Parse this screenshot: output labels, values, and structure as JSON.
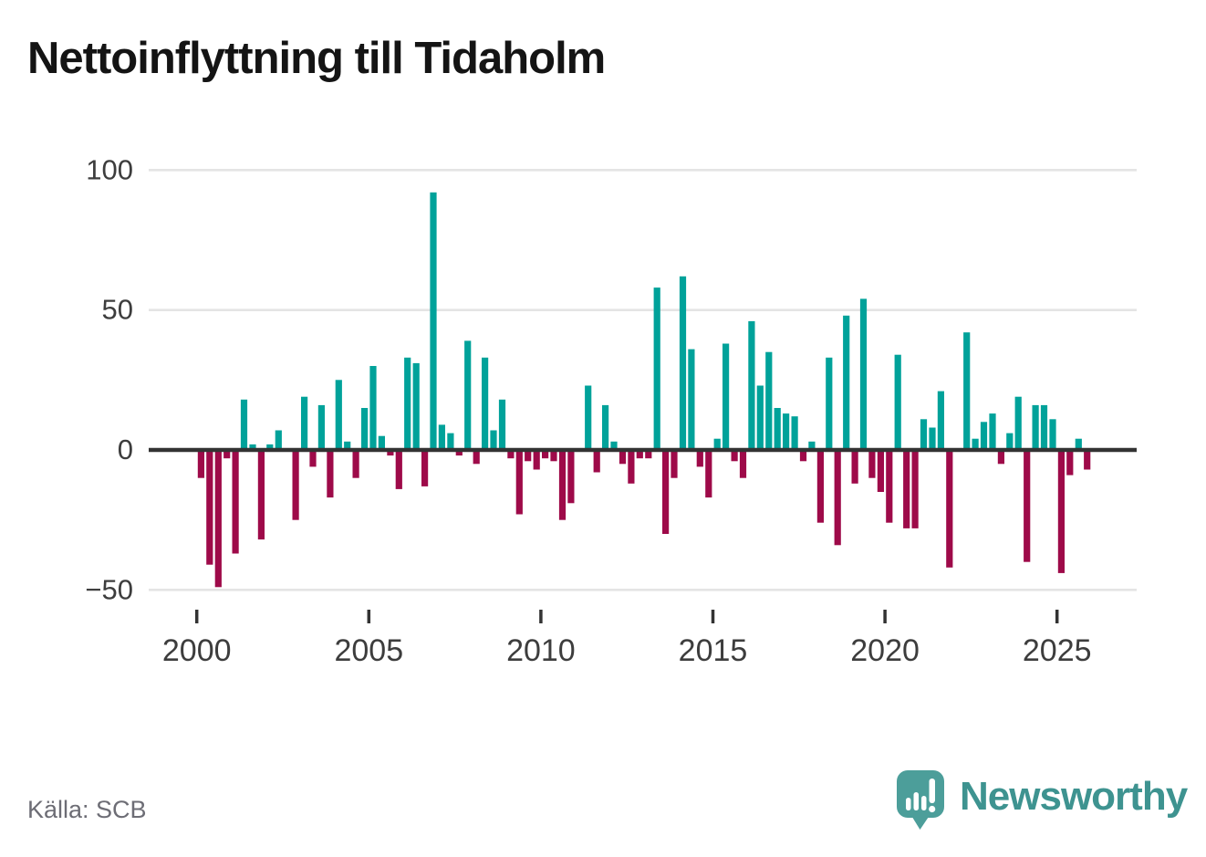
{
  "title": "Nettoinflyttning till Tidaholm",
  "source": "Källa: SCB",
  "logo": {
    "text": "Newsworthy"
  },
  "colors": {
    "positive": "#00a29a",
    "negative": "#9e0a49",
    "baseline": "#333333",
    "gridline": "#e4e4e4",
    "axis_text": "#3d3d3d",
    "source_text": "#6d6d75",
    "logo_bubble": "#4c9e9a",
    "logo_text": "#3e9390",
    "title_text": "#141414"
  },
  "y_axis": {
    "tick_labels": [
      "100",
      "50",
      "0",
      "−50"
    ],
    "tick_values": [
      100,
      50,
      0,
      -50
    ]
  },
  "x_axis": {
    "ticks": [
      "2000",
      "2005",
      "2010",
      "2015",
      "2020",
      "2025"
    ]
  },
  "chart_data": {
    "type": "bar",
    "title": "Nettoinflyttning till Tidaholm",
    "frequency": "quarterly",
    "start_period": "2000-Q1",
    "end_period": "2025-Q4",
    "ylim": [
      -50,
      100
    ],
    "grid": "horizontal",
    "legend": "none",
    "positive_color": "#00a29a",
    "negative_color": "#9e0a49",
    "values": [
      -10,
      -41,
      -49,
      -3,
      -37,
      18,
      2,
      -32,
      2,
      7,
      0,
      -25,
      19,
      -6,
      16,
      -17,
      25,
      3,
      -10,
      15,
      30,
      5,
      -2,
      -14,
      33,
      31,
      -13,
      92,
      9,
      6,
      -2,
      39,
      -5,
      33,
      7,
      18,
      -3,
      -23,
      -4,
      -7,
      -3,
      -4,
      -25,
      -19,
      0,
      23,
      -8,
      16,
      3,
      -5,
      -12,
      -3,
      -3,
      58,
      -30,
      -10,
      62,
      36,
      -6,
      -17,
      4,
      38,
      -4,
      -10,
      46,
      23,
      35,
      15,
      13,
      12,
      -4,
      3,
      -26,
      33,
      -34,
      48,
      -12,
      54,
      -10,
      -15,
      -26,
      34,
      -28,
      -28,
      11,
      8,
      21,
      -42,
      0,
      42,
      4,
      10,
      13,
      -5,
      6,
      19,
      -40,
      16,
      16,
      11,
      -44,
      -9,
      4,
      -7
    ]
  }
}
